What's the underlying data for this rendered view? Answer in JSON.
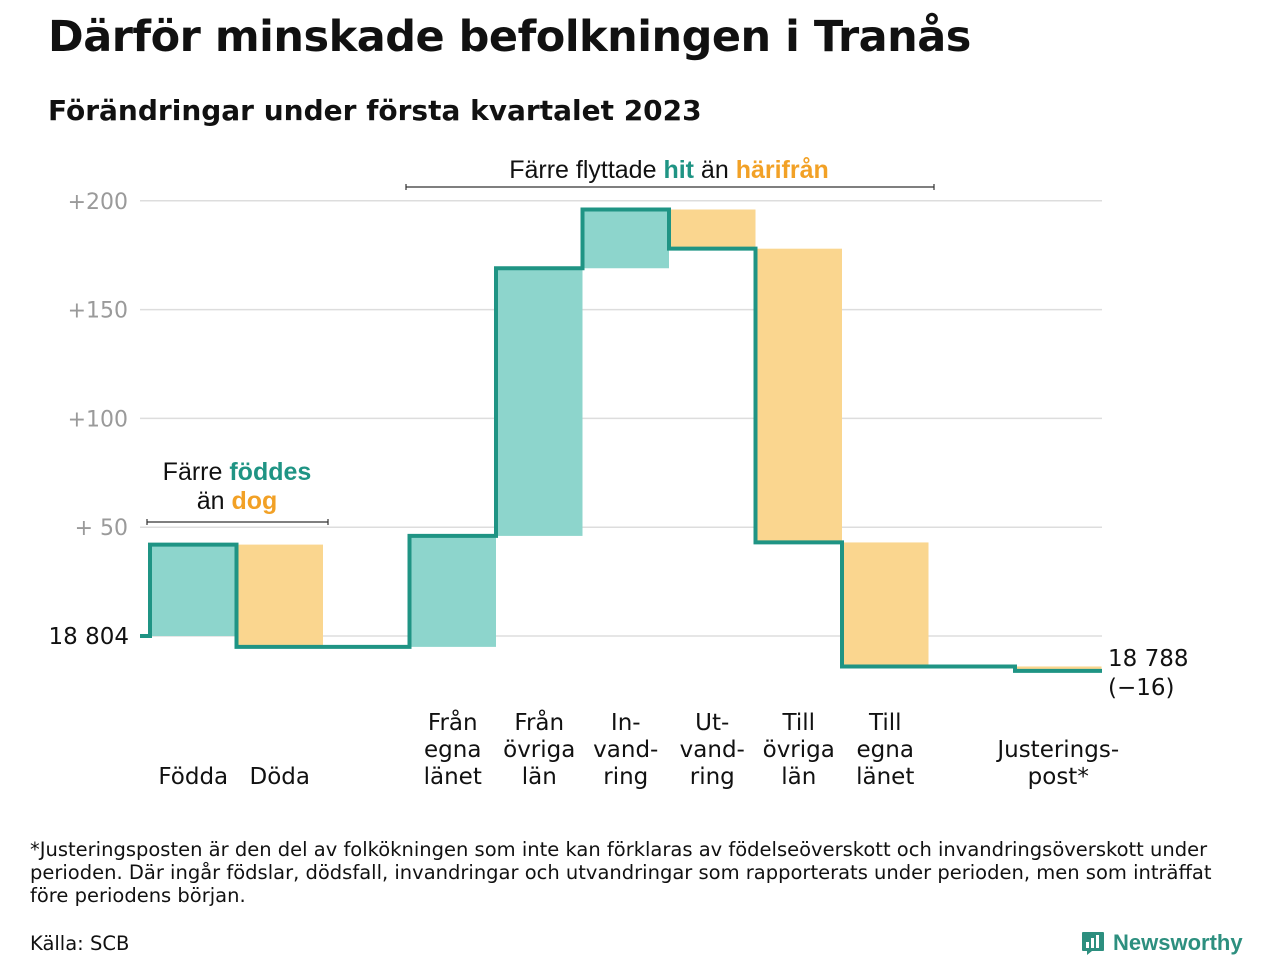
{
  "header": {
    "title": "Därför minskade befolkningen i Tranås",
    "subtitle": "Förändringar under första kvartalet 2023"
  },
  "colors": {
    "increase_fill": "#8dd5cc",
    "decrease_fill": "#fad68f",
    "step_line": "#1f9484",
    "accent_increase": "#1f9484",
    "accent_decrease": "#f2a126",
    "grid": "#dddddd",
    "axis_text": "#9a9a9a"
  },
  "chart_data": {
    "type": "waterfall",
    "start_value": 18804,
    "start_label": "18 804",
    "end_label": "18 788",
    "change_label": "(−16)",
    "y_axis": {
      "ylim": [
        -12,
        200
      ],
      "ticks": [
        {
          "value": 50,
          "label": "+ 50"
        },
        {
          "value": 100,
          "label": "+100"
        },
        {
          "value": 150,
          "label": "+150"
        },
        {
          "value": 200,
          "label": "+200"
        }
      ],
      "grid": true
    },
    "steps": [
      {
        "label": [
          "Födda"
        ],
        "delta": 42,
        "kind": "increase",
        "group": "birth"
      },
      {
        "label": [
          "Döda"
        ],
        "delta": -47,
        "kind": "decrease",
        "group": "birth"
      },
      {
        "label": [
          "Från",
          "egna",
          "länet"
        ],
        "delta": 51,
        "kind": "increase",
        "group": "migration"
      },
      {
        "label": [
          "Från",
          "övriga",
          "län"
        ],
        "delta": 123,
        "kind": "increase",
        "group": "migration"
      },
      {
        "label": [
          "In-",
          "vand-",
          "ring"
        ],
        "delta": 27,
        "kind": "increase",
        "group": "migration"
      },
      {
        "label": [
          "Ut-",
          "vand-",
          "ring"
        ],
        "delta": -18,
        "kind": "decrease",
        "group": "migration"
      },
      {
        "label": [
          "Till",
          "övriga",
          "län"
        ],
        "delta": -135,
        "kind": "decrease",
        "group": "migration"
      },
      {
        "label": [
          "Till",
          "egna",
          "länet"
        ],
        "delta": -57,
        "kind": "decrease",
        "group": "migration"
      },
      {
        "label": [
          "Justerings-",
          "post*"
        ],
        "delta": -2,
        "kind": "decrease",
        "group": "adjustment"
      }
    ],
    "annotations": {
      "birth": {
        "prefix": "Färre ",
        "up": "föddes",
        "line2_prefix": "än ",
        "down": "dog"
      },
      "migration": {
        "prefix": "Färre flyttade ",
        "up": "hit",
        "mid": " än ",
        "down": "härifrån"
      }
    }
  },
  "footer": {
    "footnote": "*Justeringsposten är den del av folkökningen som inte kan förklaras av födelseöverskott och invandringsöverskott under perioden. Där ingår födslar, dödsfall, invandringar och utvandringar som rapporterats under perioden, men som inträffat före periodens början.",
    "source": "Källa: SCB",
    "brand": "Newsworthy",
    "brand_icon": "newsworthy-logo-icon"
  }
}
